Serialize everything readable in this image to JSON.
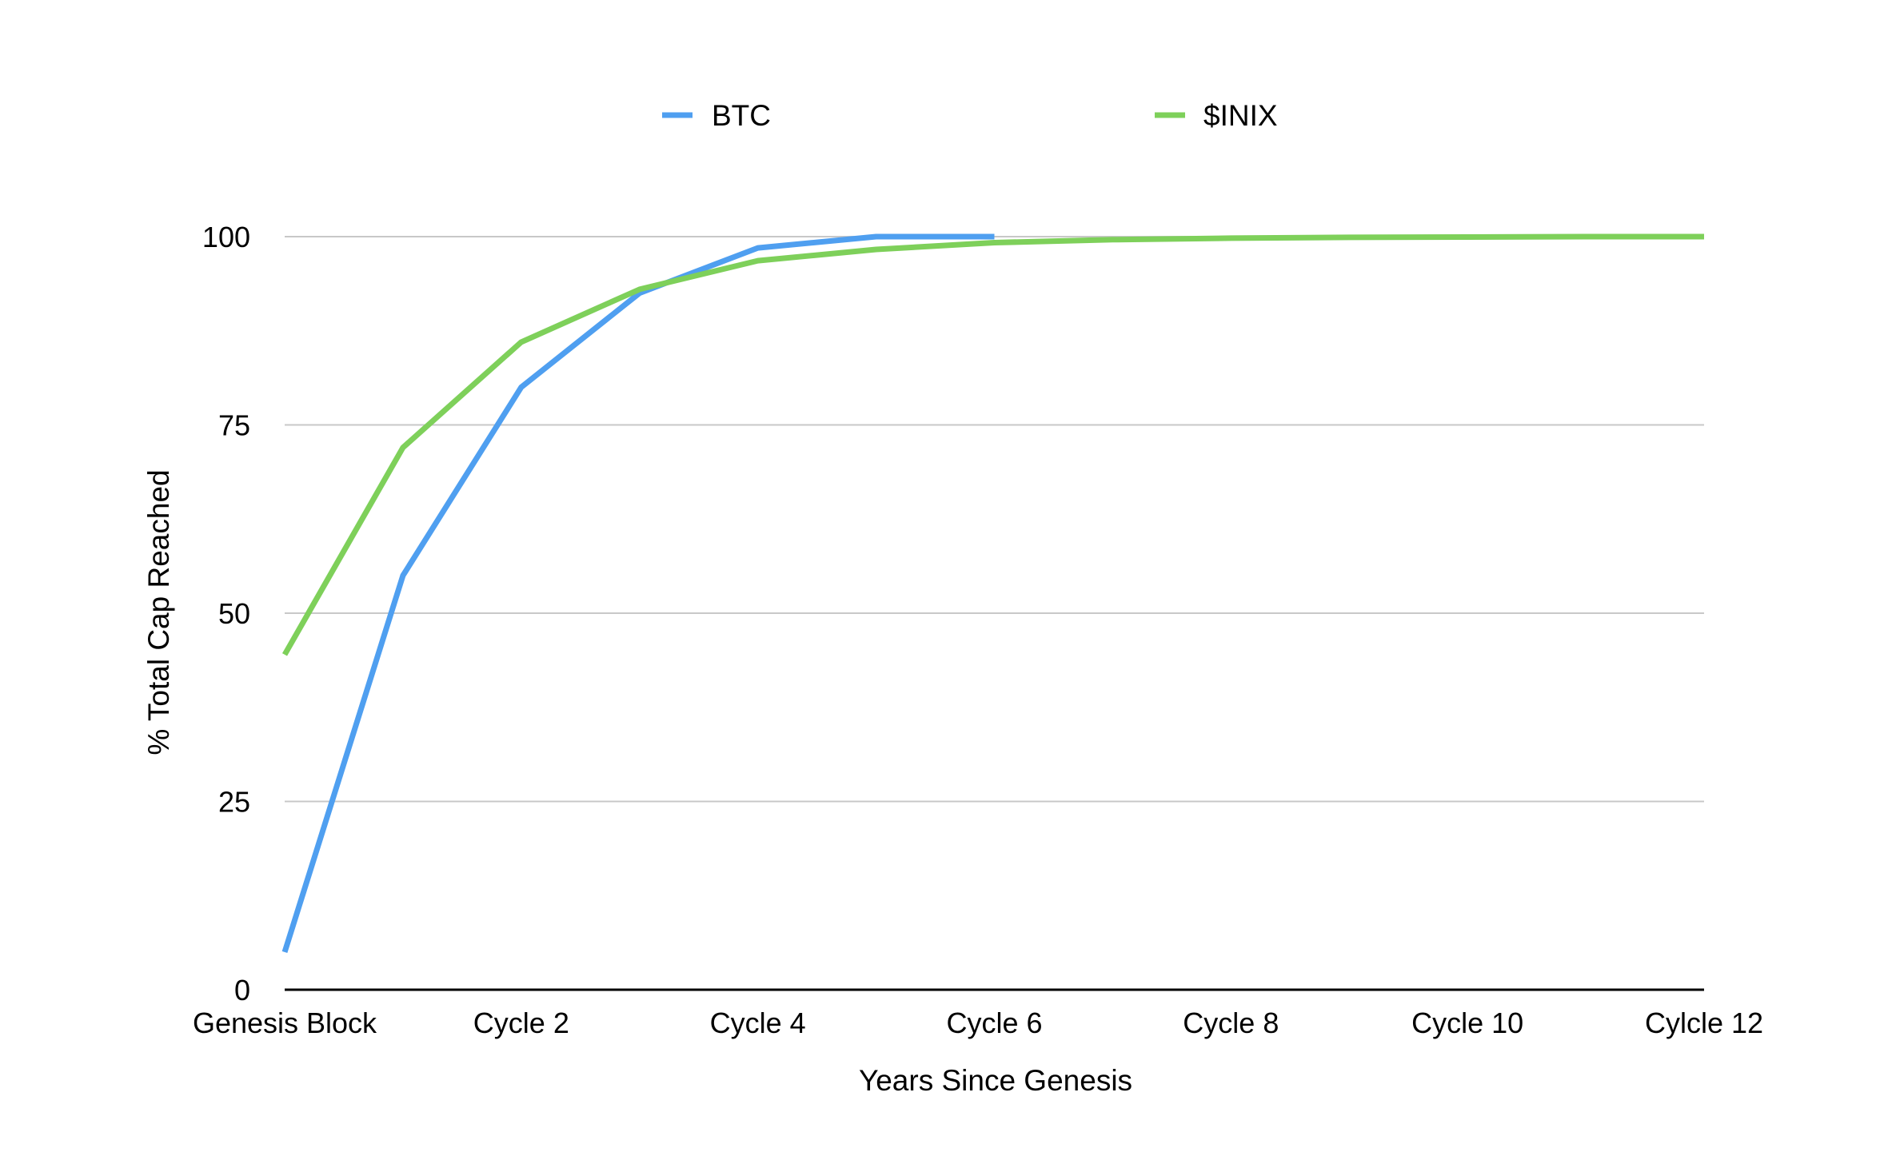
{
  "chart_data": {
    "type": "line",
    "title": "",
    "xlabel": "Years Since Genesis",
    "ylabel": "% Total Cap Reached",
    "categories": [
      "Genesis Block",
      "",
      "Cycle 2",
      "",
      "Cycle 4",
      "",
      "Cycle 6",
      "",
      "Cycle 8",
      "",
      "Cycle 10",
      "",
      "Cylcle 12"
    ],
    "xtick_labels": [
      "Genesis Block",
      "Cycle 2",
      "Cycle 4",
      "Cycle 6",
      "Cycle 8",
      "Cycle 10",
      "Cylcle 12"
    ],
    "ylim": [
      0,
      100
    ],
    "yticks": [
      0,
      25,
      50,
      75,
      100
    ],
    "grid": true,
    "legend_position": "top-center",
    "series": [
      {
        "name": "BTC",
        "color": "#4f9ff0",
        "values": [
          5,
          55,
          80,
          92.5,
          98.5,
          100,
          100,
          null,
          null,
          null,
          null,
          null,
          null
        ]
      },
      {
        "name": "$INIX",
        "color": "#7ed05a",
        "values": [
          44.5,
          72,
          86,
          93,
          96.8,
          98.3,
          99.2,
          99.6,
          99.8,
          99.9,
          99.95,
          100,
          100
        ]
      }
    ]
  }
}
